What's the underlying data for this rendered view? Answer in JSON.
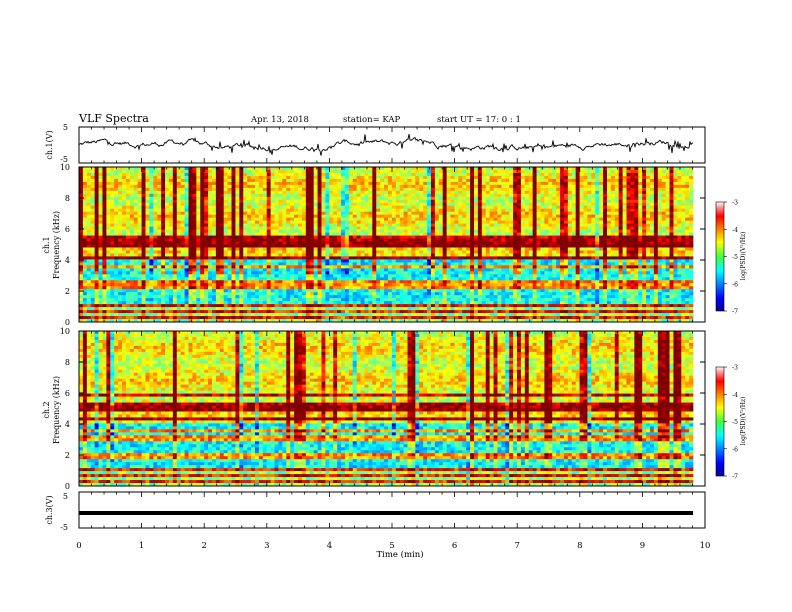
{
  "header": {
    "title": "VLF Spectra",
    "date": "Apr. 13, 2018",
    "station": "station= KAP",
    "start": "start  UT =   17: 0  : 1"
  },
  "chart_data": [
    {
      "type": "line",
      "name": "ch1-waveform",
      "ylabel": "ch.1(V)",
      "ylim": [
        -5,
        5
      ],
      "yticks": [
        "5",
        "-5"
      ],
      "xlim": [
        0,
        10
      ]
    },
    {
      "type": "heatmap",
      "name": "ch1-spectrogram",
      "ylabel": "ch.1\nFrequency  (kHz)",
      "ylabel_channel": "ch.1",
      "ylabel_freq": "Frequency  (kHz)",
      "ylim": [
        0,
        10
      ],
      "yticks": [
        "0",
        "2",
        "4",
        "6",
        "8",
        "10"
      ],
      "xlim": [
        0,
        10
      ],
      "colorbar": {
        "range": [
          -7,
          -3
        ],
        "ticks": [
          "-3",
          "-4",
          "-5",
          "-6",
          "-7"
        ],
        "label": "log(PSD)(V²/Hz)"
      },
      "strong_bands_khz": [
        0.3,
        0.7,
        1.0,
        2.3,
        2.6,
        3.5,
        4.2,
        5.0,
        5.4
      ]
    },
    {
      "type": "heatmap",
      "name": "ch2-spectrogram",
      "ylabel_channel": "ch.2",
      "ylabel_freq": "Frequency  (kHz)",
      "ylim": [
        0,
        10
      ],
      "yticks": [
        "0",
        "2",
        "4",
        "6",
        "8",
        "10"
      ],
      "xlim": [
        0,
        10
      ],
      "colorbar": {
        "range": [
          -7,
          -3
        ],
        "ticks": [
          "-3",
          "-4",
          "-5",
          "-6",
          "-7"
        ],
        "label": "log(PSD)(V²/Hz)"
      },
      "strong_bands_khz": [
        0.3,
        0.7,
        1.0,
        1.9,
        3.1,
        3.5,
        4.3,
        5.0,
        5.3,
        5.8
      ]
    },
    {
      "type": "line",
      "name": "ch3-waveform",
      "ylabel": "ch.3(V)",
      "ylim": [
        -5,
        5
      ],
      "yticks": [
        "5",
        "-5"
      ],
      "xlim": [
        0,
        10
      ],
      "constant_value_v": -1.5
    }
  ],
  "xaxis": {
    "label": "Time  (min)",
    "ticks": [
      "0",
      "1",
      "2",
      "3",
      "4",
      "5",
      "6",
      "7",
      "8",
      "9",
      "10"
    ]
  }
}
